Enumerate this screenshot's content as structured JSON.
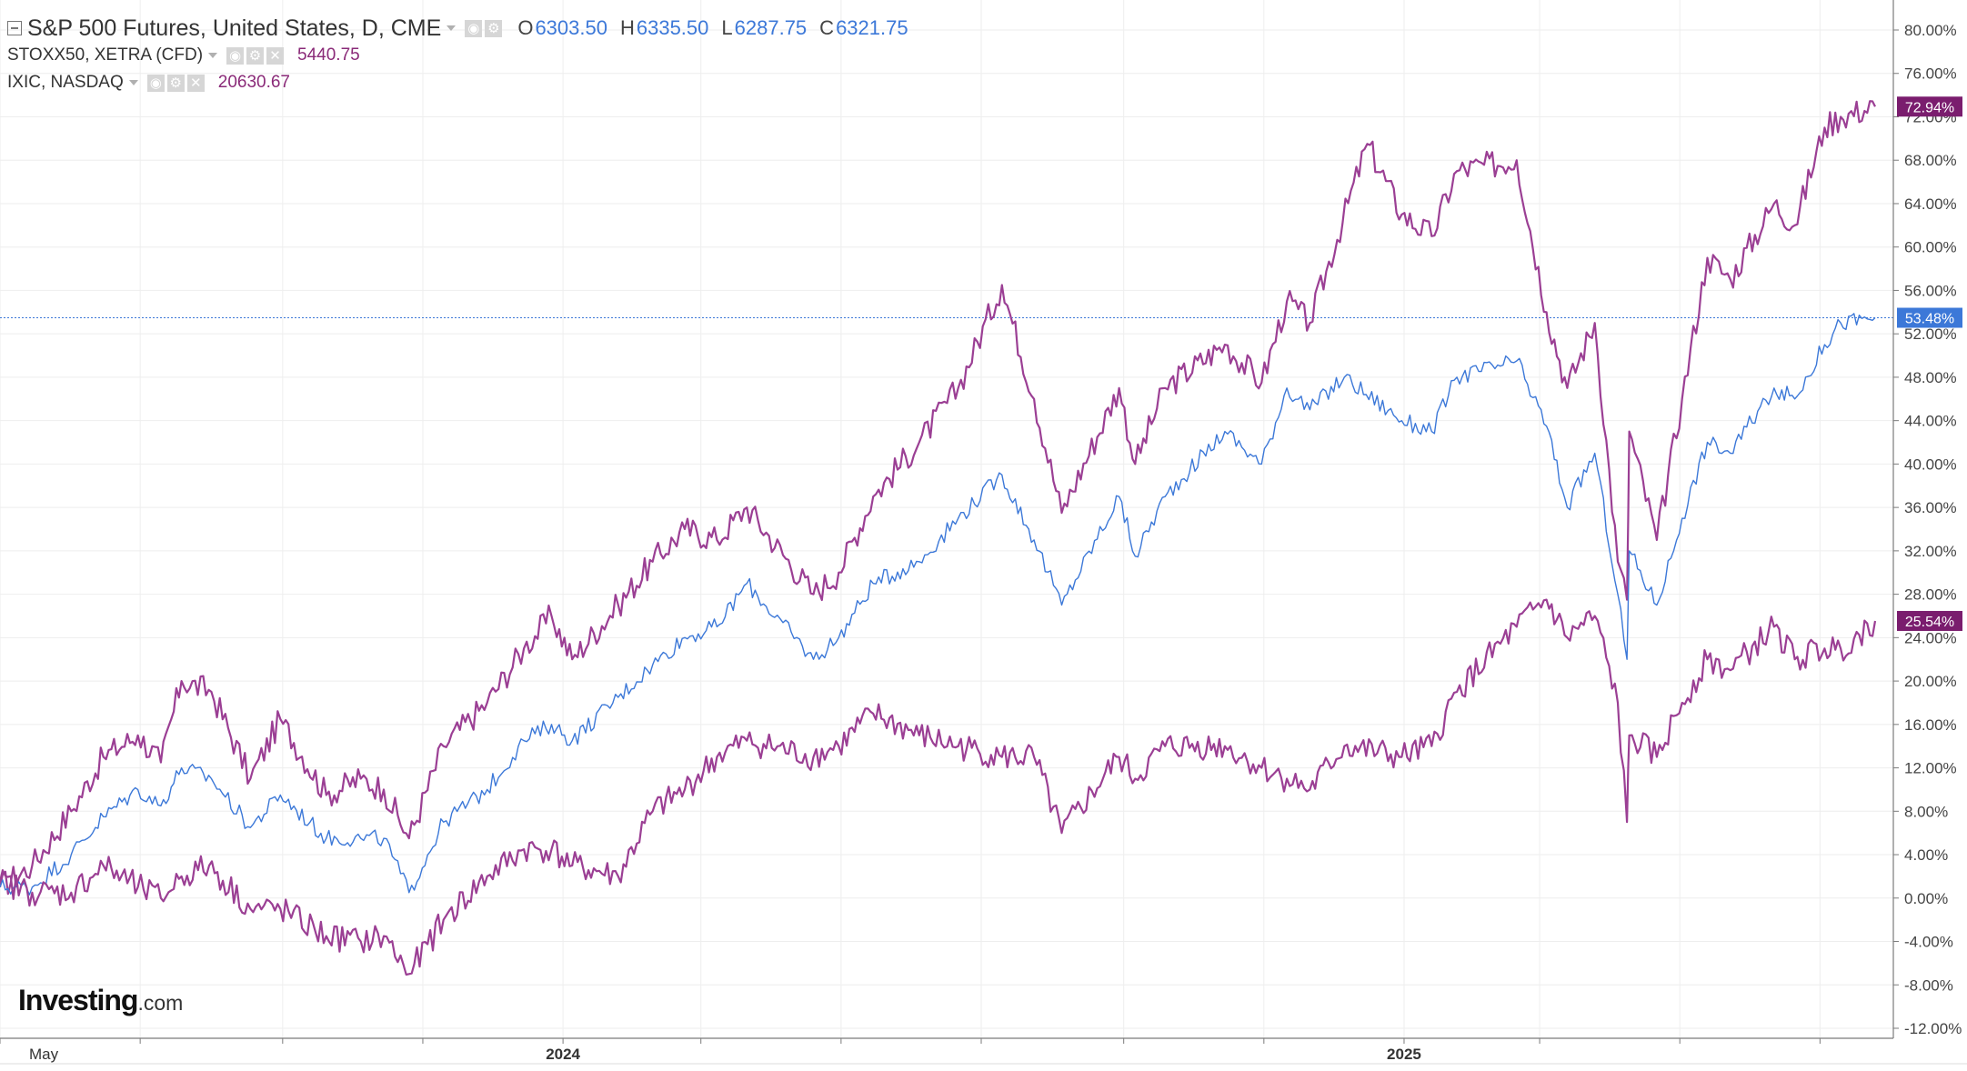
{
  "legend": {
    "main": {
      "symbol": "S&P 500 Futures, United States, D, CME",
      "o_label": "O",
      "o_value": "6303.50",
      "h_label": "H",
      "h_value": "6335.50",
      "l_label": "L",
      "l_value": "6287.75",
      "c_label": "C",
      "c_value": "6321.75"
    },
    "compare": [
      {
        "symbol": "STOXX50, XETRA (CFD)",
        "value": "5440.75"
      },
      {
        "symbol": "IXIC, NASDAQ",
        "value": "20630.67"
      }
    ]
  },
  "logo": {
    "main": "Investing",
    "suffix": ".com"
  },
  "colors": {
    "sp500": "#3c78d8",
    "stoxx50": "#9b3f94",
    "ixic": "#9b3f94",
    "badge_ixic": "#7a1d6e",
    "badge_stoxx": "#7a1d6e",
    "badge_sp500": "#3c78d8",
    "grid": "#eeeeee",
    "axis": "#7b7b7b"
  },
  "chart_data": {
    "type": "line",
    "y_unit": "percent change",
    "ylim": [
      -12,
      80
    ],
    "y_ticks": [
      "80.00%",
      "76.00%",
      "72.00%",
      "68.00%",
      "64.00%",
      "60.00%",
      "56.00%",
      "52.00%",
      "48.00%",
      "44.00%",
      "40.00%",
      "36.00%",
      "32.00%",
      "28.00%",
      "24.00%",
      "20.00%",
      "16.00%",
      "12.00%",
      "8.00%",
      "4.00%",
      "0.00%",
      "-4.00%",
      "-8.00%",
      "-12.00%"
    ],
    "x_range": [
      "2023-05-01",
      "2025-07-25"
    ],
    "x_labels": [
      {
        "label": "May",
        "date": "2023-05-01"
      },
      {
        "label": "2024",
        "date": "2024-01-01"
      },
      {
        "label": "2025",
        "date": "2025-01-01"
      }
    ],
    "x_tick_dates": [
      "2023-05-01",
      "2023-07-01",
      "2023-09-01",
      "2023-11-01",
      "2024-01-01",
      "2024-03-01",
      "2024-05-01",
      "2024-07-01",
      "2024-09-01",
      "2024-11-01",
      "2025-01-01",
      "2025-03-01",
      "2025-05-01",
      "2025-07-01"
    ],
    "grid": true,
    "crosshair_y": 53.48,
    "series": [
      {
        "name": "IXIC, NASDAQ",
        "role": "ixic",
        "last_label": "72.94%",
        "points": [
          [
            "2023-05-01",
            1
          ],
          [
            "2023-05-15",
            3
          ],
          [
            "2023-06-01",
            8
          ],
          [
            "2023-06-15",
            13
          ],
          [
            "2023-06-30",
            15
          ],
          [
            "2023-07-10",
            12.5
          ],
          [
            "2023-07-19",
            20
          ],
          [
            "2023-08-01",
            19
          ],
          [
            "2023-08-18",
            11
          ],
          [
            "2023-08-31",
            16.5
          ],
          [
            "2023-09-20",
            9.5
          ],
          [
            "2023-10-05",
            11
          ],
          [
            "2023-10-15",
            10
          ],
          [
            "2023-10-26",
            5.5
          ],
          [
            "2023-11-10",
            14
          ],
          [
            "2023-11-29",
            18
          ],
          [
            "2023-12-15",
            23
          ],
          [
            "2023-12-27",
            26
          ],
          [
            "2024-01-05",
            22
          ],
          [
            "2024-01-25",
            27
          ],
          [
            "2024-02-09",
            31
          ],
          [
            "2024-02-23",
            34
          ],
          [
            "2024-03-08",
            33
          ],
          [
            "2024-03-21",
            36
          ],
          [
            "2024-04-19",
            28
          ],
          [
            "2024-04-30",
            30
          ],
          [
            "2024-05-15",
            37
          ],
          [
            "2024-06-04",
            42
          ],
          [
            "2024-06-21",
            47
          ],
          [
            "2024-07-10",
            56.5
          ],
          [
            "2024-07-24",
            46
          ],
          [
            "2024-08-05",
            35.5
          ],
          [
            "2024-08-30",
            47
          ],
          [
            "2024-09-06",
            40
          ],
          [
            "2024-09-19",
            47
          ],
          [
            "2024-10-15",
            51
          ],
          [
            "2024-10-31",
            47.5
          ],
          [
            "2024-11-11",
            55
          ],
          [
            "2024-11-21",
            53
          ],
          [
            "2024-12-16",
            69.5
          ],
          [
            "2024-12-31",
            63
          ],
          [
            "2025-01-13",
            61
          ],
          [
            "2025-01-24",
            67
          ],
          [
            "2025-02-19",
            68
          ],
          [
            "2025-03-04",
            54
          ],
          [
            "2025-03-13",
            47
          ],
          [
            "2025-03-25",
            53
          ],
          [
            "2025-04-04",
            31
          ],
          [
            "2025-04-08",
            27.5
          ],
          [
            "2025-04-09",
            43
          ],
          [
            "2025-04-21",
            33
          ],
          [
            "2025-05-02",
            46
          ],
          [
            "2025-05-13",
            59
          ],
          [
            "2025-05-23",
            57
          ],
          [
            "2025-06-11",
            64
          ],
          [
            "2025-06-20",
            62
          ],
          [
            "2025-07-03",
            71
          ],
          [
            "2025-07-10",
            72
          ],
          [
            "2025-07-25",
            72.94
          ]
        ]
      },
      {
        "name": "S&P 500 Futures",
        "role": "sp500",
        "last_label": "53.48%",
        "points": [
          [
            "2023-05-01",
            1
          ],
          [
            "2023-05-15",
            1
          ],
          [
            "2023-06-01",
            4
          ],
          [
            "2023-06-15",
            7.5
          ],
          [
            "2023-06-30",
            10
          ],
          [
            "2023-07-10",
            8.5
          ],
          [
            "2023-07-19",
            12
          ],
          [
            "2023-08-01",
            11
          ],
          [
            "2023-08-18",
            6.5
          ],
          [
            "2023-08-31",
            9.5
          ],
          [
            "2023-09-20",
            5.5
          ],
          [
            "2023-10-05",
            5.5
          ],
          [
            "2023-10-15",
            5.5
          ],
          [
            "2023-10-26",
            0.5
          ],
          [
            "2023-11-10",
            7
          ],
          [
            "2023-11-29",
            10
          ],
          [
            "2023-12-15",
            14.5
          ],
          [
            "2023-12-27",
            16
          ],
          [
            "2024-01-05",
            14.5
          ],
          [
            "2024-01-25",
            18.5
          ],
          [
            "2024-02-09",
            21.5
          ],
          [
            "2024-02-23",
            24
          ],
          [
            "2024-03-08",
            25
          ],
          [
            "2024-03-21",
            29
          ],
          [
            "2024-04-19",
            22
          ],
          [
            "2024-04-30",
            24
          ],
          [
            "2024-05-15",
            29
          ],
          [
            "2024-06-04",
            31
          ],
          [
            "2024-06-21",
            35
          ],
          [
            "2024-07-10",
            39
          ],
          [
            "2024-07-24",
            33
          ],
          [
            "2024-08-05",
            27
          ],
          [
            "2024-08-30",
            37
          ],
          [
            "2024-09-06",
            31.5
          ],
          [
            "2024-09-19",
            37
          ],
          [
            "2024-10-15",
            43
          ],
          [
            "2024-10-31",
            40
          ],
          [
            "2024-11-11",
            47
          ],
          [
            "2024-11-21",
            45
          ],
          [
            "2024-12-06",
            48
          ],
          [
            "2024-12-31",
            44
          ],
          [
            "2025-01-13",
            43
          ],
          [
            "2025-01-24",
            48
          ],
          [
            "2025-02-19",
            49.5
          ],
          [
            "2025-03-04",
            43.5
          ],
          [
            "2025-03-13",
            36
          ],
          [
            "2025-03-25",
            41
          ],
          [
            "2025-04-04",
            28
          ],
          [
            "2025-04-08",
            22
          ],
          [
            "2025-04-09",
            32
          ],
          [
            "2025-04-21",
            27
          ],
          [
            "2025-05-02",
            35
          ],
          [
            "2025-05-13",
            42
          ],
          [
            "2025-05-23",
            41
          ],
          [
            "2025-06-11",
            47
          ],
          [
            "2025-06-20",
            46
          ],
          [
            "2025-07-03",
            51
          ],
          [
            "2025-07-10",
            53
          ],
          [
            "2025-07-25",
            53.48
          ]
        ]
      },
      {
        "name": "STOXX50, XETRA (CFD)",
        "role": "stoxx50",
        "last_label": "25.54%",
        "points": [
          [
            "2023-05-01",
            1.5
          ],
          [
            "2023-05-15",
            0.5
          ],
          [
            "2023-06-01",
            0.5
          ],
          [
            "2023-06-15",
            3
          ],
          [
            "2023-06-30",
            1
          ],
          [
            "2023-07-10",
            0
          ],
          [
            "2023-07-19",
            2
          ],
          [
            "2023-07-31",
            3
          ],
          [
            "2023-08-18",
            -1
          ],
          [
            "2023-08-31",
            -1
          ],
          [
            "2023-09-20",
            -3.5
          ],
          [
            "2023-10-05",
            -4
          ],
          [
            "2023-10-15",
            -3.5
          ],
          [
            "2023-10-26",
            -7
          ],
          [
            "2023-11-10",
            -2
          ],
          [
            "2023-11-29",
            2
          ],
          [
            "2023-12-15",
            4.5
          ],
          [
            "2023-12-27",
            4.5
          ],
          [
            "2024-01-05",
            3
          ],
          [
            "2024-01-25",
            2
          ],
          [
            "2024-02-09",
            8
          ],
          [
            "2024-02-23",
            10
          ],
          [
            "2024-03-08",
            13
          ],
          [
            "2024-03-21",
            14.5
          ],
          [
            "2024-04-19",
            13
          ],
          [
            "2024-04-30",
            14
          ],
          [
            "2024-05-15",
            17
          ],
          [
            "2024-06-04",
            15
          ],
          [
            "2024-06-21",
            14
          ],
          [
            "2024-07-10",
            13
          ],
          [
            "2024-07-24",
            13
          ],
          [
            "2024-08-05",
            6
          ],
          [
            "2024-08-30",
            13
          ],
          [
            "2024-09-06",
            11
          ],
          [
            "2024-09-19",
            14
          ],
          [
            "2024-10-15",
            14
          ],
          [
            "2024-10-31",
            12
          ],
          [
            "2024-11-11",
            11
          ],
          [
            "2024-11-21",
            10
          ],
          [
            "2024-12-06",
            14
          ],
          [
            "2024-12-31",
            13
          ],
          [
            "2025-01-13",
            14
          ],
          [
            "2025-01-24",
            19
          ],
          [
            "2025-02-19",
            25
          ],
          [
            "2025-03-04",
            27.5
          ],
          [
            "2025-03-13",
            24
          ],
          [
            "2025-03-25",
            26
          ],
          [
            "2025-04-04",
            18
          ],
          [
            "2025-04-08",
            7
          ],
          [
            "2025-04-09",
            15
          ],
          [
            "2025-04-21",
            13
          ],
          [
            "2025-05-02",
            18
          ],
          [
            "2025-05-13",
            22
          ],
          [
            "2025-05-23",
            21
          ],
          [
            "2025-06-11",
            25
          ],
          [
            "2025-06-20",
            22
          ],
          [
            "2025-07-03",
            23
          ],
          [
            "2025-07-10",
            23
          ],
          [
            "2025-07-25",
            25.54
          ]
        ]
      }
    ]
  }
}
